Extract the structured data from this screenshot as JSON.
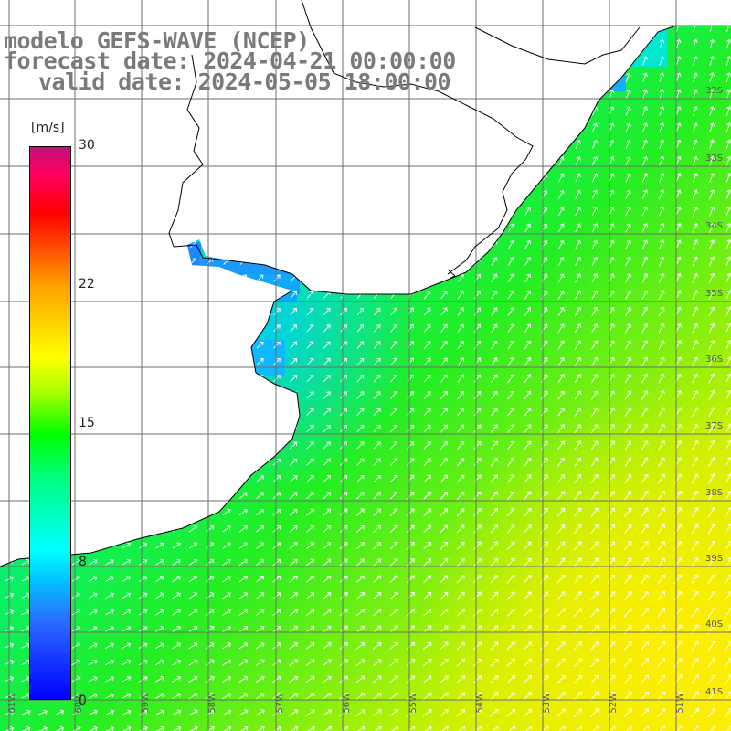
{
  "title": {
    "line1": "modelo GEFS-WAVE (NCEP)",
    "line2": "forecast date: 2024-04-21 00:00:00",
    "line3": "valid date: 2024-05-05 18:00:00"
  },
  "colorbar": {
    "unit": "[m/s]",
    "ticks": [
      "30",
      "22",
      "15",
      "8",
      "0"
    ],
    "colors": [
      "#0000ff",
      "#00ffff",
      "#00ff00",
      "#ffff00",
      "#ff0000",
      "#c0107a"
    ]
  },
  "latitude_labels": [
    "32S",
    "33S",
    "34S",
    "35S",
    "36S",
    "37S",
    "38S",
    "39S",
    "40S",
    "41S"
  ],
  "longitude_labels": [
    "61W",
    "60W",
    "59W",
    "58W",
    "57W",
    "56W",
    "55W",
    "54W",
    "53W",
    "52W",
    "51W"
  ],
  "wind_field": {
    "description_source": "wind speed shading with direction arrows",
    "arrow_direction": "toward NE",
    "speed_range_ms": [
      8,
      17
    ]
  }
}
